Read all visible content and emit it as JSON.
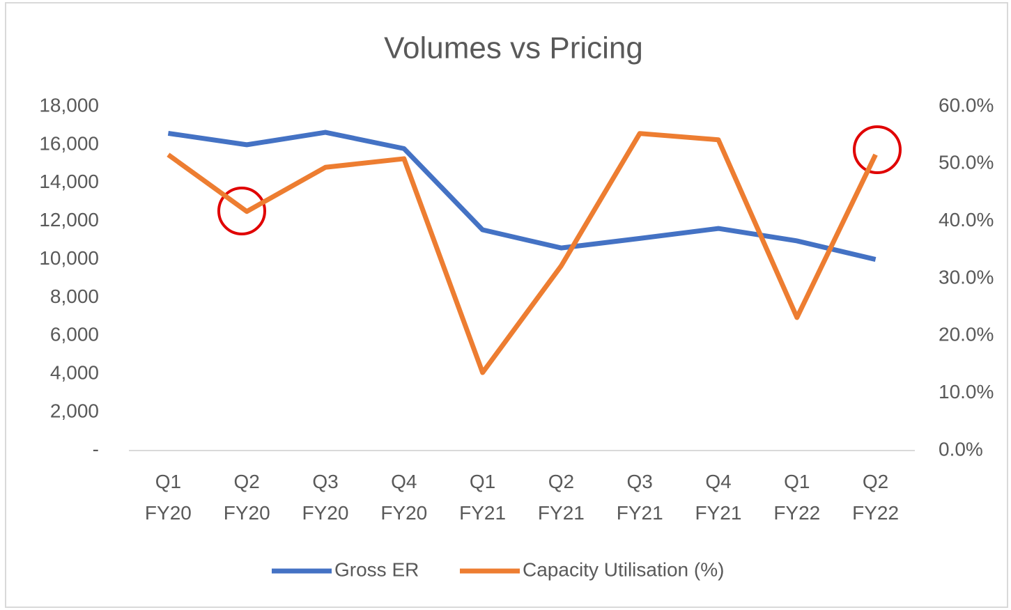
{
  "chart_data": {
    "type": "line",
    "title": "Volumes vs Pricing",
    "categories": [
      "Q1 FY20",
      "Q2 FY20",
      "Q3 FY20",
      "Q4 FY20",
      "Q1 FY21",
      "Q2 FY21",
      "Q3 FY21",
      "Q4 FY21",
      "Q1 FY22",
      "Q2 FY22"
    ],
    "series": [
      {
        "name": "Gross ER",
        "color": "#4472c4",
        "values": [
          16600,
          16000,
          16650,
          15800,
          11550,
          10600,
          11100,
          11620,
          10970,
          10000
        ]
      },
      {
        "name": "Capacity Utilisation (%)",
        "color": "#ed7d31",
        "axis": "y2",
        "values": [
          51.6,
          41.7,
          49.4,
          50.9,
          13.6,
          32.2,
          55.3,
          54.2,
          23.2,
          51.6
        ]
      }
    ],
    "ylim": [
      0,
      18000
    ],
    "yticks": [
      {
        "value": 0,
        "label": "-"
      },
      {
        "value": 2000,
        "label": "2,000"
      },
      {
        "value": 4000,
        "label": "4,000"
      },
      {
        "value": 6000,
        "label": "6,000"
      },
      {
        "value": 8000,
        "label": "8,000"
      },
      {
        "value": 10000,
        "label": "10,000"
      },
      {
        "value": 12000,
        "label": "12,000"
      },
      {
        "value": 14000,
        "label": "14,000"
      },
      {
        "value": 16000,
        "label": "16,000"
      },
      {
        "value": 18000,
        "label": "18,000"
      }
    ],
    "y2lim": [
      0,
      60
    ],
    "y2ticks": [
      {
        "value": 0,
        "label": "0.0%"
      },
      {
        "value": 10,
        "label": "10.0%"
      },
      {
        "value": 20,
        "label": "20.0%"
      },
      {
        "value": 30,
        "label": "30.0%"
      },
      {
        "value": 40,
        "label": "40.0%"
      },
      {
        "value": 50,
        "label": "50.0%"
      },
      {
        "value": 60,
        "label": "60.0%"
      }
    ],
    "grid": false,
    "legend": "bottom"
  }
}
